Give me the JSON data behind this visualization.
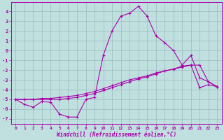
{
  "background_color": "#c0e0e0",
  "line_color": "#aa00aa",
  "grid_color": "#99bbbb",
  "xlabel": "Windchill (Refroidissement éolien,°C)",
  "xlim": [
    -0.5,
    23.5
  ],
  "ylim": [
    -7.5,
    4.9
  ],
  "yticks": [
    -7,
    -6,
    -5,
    -4,
    -3,
    -2,
    -1,
    0,
    1,
    2,
    3,
    4
  ],
  "xticks": [
    0,
    1,
    2,
    3,
    4,
    5,
    6,
    7,
    8,
    9,
    10,
    11,
    12,
    13,
    14,
    15,
    16,
    17,
    18,
    19,
    20,
    21,
    22,
    23
  ],
  "y_main": [
    -5.0,
    -5.5,
    -5.8,
    -5.2,
    -5.3,
    -6.5,
    -6.8,
    -6.8,
    -5.0,
    -4.8,
    -0.5,
    2.0,
    3.5,
    3.8,
    4.5,
    3.5,
    1.5,
    0.8,
    0.0,
    -1.5,
    -0.5,
    -2.8,
    -3.2,
    -3.7
  ],
  "y_line2": [
    -5.0,
    -5.0,
    -5.0,
    -5.0,
    -5.0,
    -5.0,
    -4.9,
    -4.8,
    -4.6,
    -4.4,
    -4.1,
    -3.8,
    -3.5,
    -3.2,
    -2.9,
    -2.7,
    -2.4,
    -2.1,
    -1.9,
    -1.6,
    -1.5,
    -1.5,
    -3.2,
    -3.7
  ],
  "y_line3": [
    -5.0,
    -5.0,
    -5.0,
    -4.9,
    -4.9,
    -4.8,
    -4.7,
    -4.6,
    -4.4,
    -4.2,
    -3.9,
    -3.6,
    -3.3,
    -3.0,
    -2.8,
    -2.6,
    -2.3,
    -2.1,
    -1.9,
    -1.7,
    -1.5,
    -3.8,
    -3.5,
    -3.7
  ]
}
